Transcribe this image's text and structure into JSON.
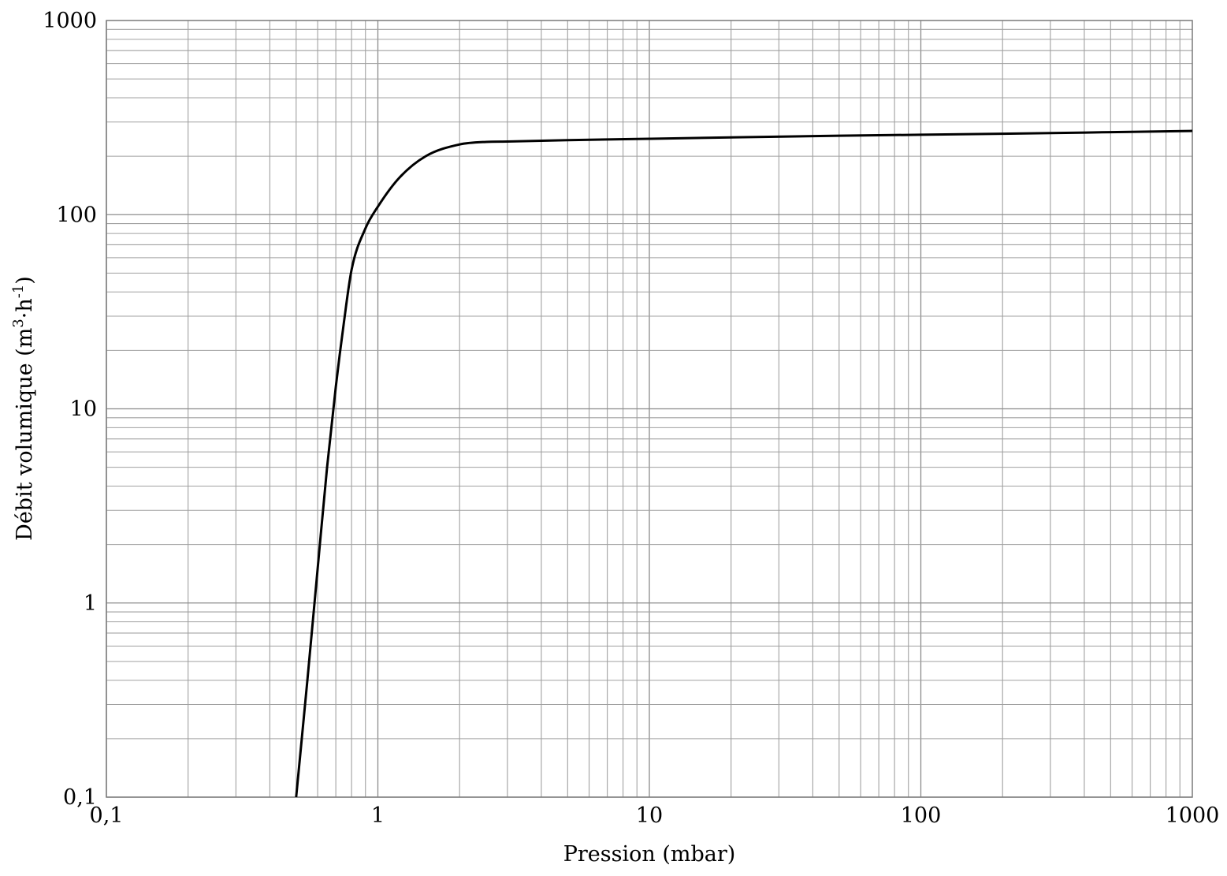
{
  "chart_data": {
    "type": "line",
    "title": "",
    "xlabel": "Pression (mbar)",
    "ylabel_main": "Débit volumique (m",
    "ylabel_sup1": "3",
    "ylabel_mid": "·h",
    "ylabel_sup2": "-1",
    "ylabel_end": ")",
    "x_scale": "log",
    "y_scale": "log",
    "xlim": [
      0.1,
      1000
    ],
    "ylim": [
      0.1,
      1000
    ],
    "grid": true,
    "x_ticks": [
      0.1,
      1,
      10,
      100,
      1000
    ],
    "x_tick_labels": [
      "0,1",
      "1",
      "10",
      "100",
      "1000"
    ],
    "y_ticks": [
      0.1,
      1,
      10,
      100,
      1000
    ],
    "y_tick_labels": [
      "0,1",
      "1",
      "10",
      "100",
      "1000"
    ],
    "series": [
      {
        "color": "#000000",
        "x": [
          0.5,
          0.55,
          0.6,
          0.65,
          0.7,
          0.75,
          0.8,
          0.9,
          1.0,
          1.2,
          1.5,
          2.0,
          2.5,
          3,
          5,
          10,
          20,
          50,
          100,
          200,
          500,
          1000
        ],
        "y": [
          0.1,
          0.4,
          1.5,
          5.0,
          13,
          28,
          52,
          85,
          110,
          155,
          200,
          230,
          237,
          238,
          242,
          246,
          250,
          255,
          258,
          261,
          266,
          270
        ]
      }
    ]
  }
}
